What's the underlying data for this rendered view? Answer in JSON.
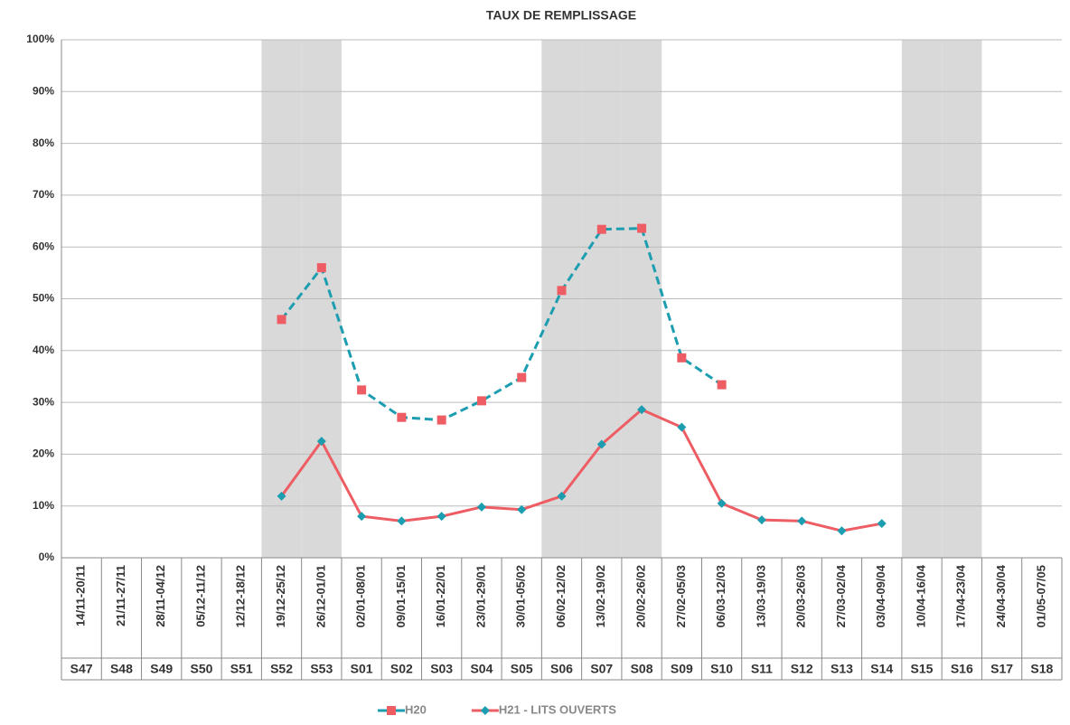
{
  "chart_data": {
    "type": "line",
    "title": "TAUX DE REMPLISSAGE",
    "categories": [
      "S47",
      "S48",
      "S49",
      "S50",
      "S51",
      "S52",
      "S53",
      "S01",
      "S02",
      "S03",
      "S04",
      "S05",
      "S06",
      "S07",
      "S08",
      "S09",
      "S10",
      "S11",
      "S12",
      "S13",
      "S14",
      "S15",
      "S16",
      "S17",
      "S18"
    ],
    "date_ranges": [
      "14/11-20/11",
      "21/11-27/11",
      "28/11-04/12",
      "05/12-11/12",
      "12/12-18/12",
      "19/12-25/12",
      "26/12-01/01",
      "02/01-08/01",
      "09/01-15/01",
      "16/01-22/01",
      "23/01-29/01",
      "30/01-05/02",
      "06/02-12/02",
      "13/02-19/02",
      "20/02-26/02",
      "27/02-05/03",
      "06/03-12/03",
      "13/03-19/03",
      "20/03-26/03",
      "27/03-02/04",
      "03/04-09/04",
      "10/04-16/04",
      "17/04-23/04",
      "24/04-30/04",
      "01/05-07/05"
    ],
    "shaded_categories": [
      5,
      6,
      12,
      13,
      14,
      21,
      22
    ],
    "series": [
      {
        "name": "H20",
        "color": "#ee5d64",
        "line_color": "#1c9db0",
        "line_style": "dashed",
        "marker": "square",
        "values": [
          null,
          null,
          null,
          null,
          null,
          46,
          56,
          32.4,
          27.1,
          26.6,
          30.3,
          34.8,
          51.6,
          63.4,
          63.6,
          38.6,
          33.4,
          null,
          null,
          null,
          null,
          null,
          null,
          null,
          null
        ]
      },
      {
        "name": "H21 - LITS OUVERTS",
        "color": "#1c9db0",
        "line_color": "#ee5d64",
        "line_style": "solid",
        "marker": "diamond",
        "values": [
          null,
          null,
          null,
          null,
          null,
          11.9,
          22.5,
          8,
          7.1,
          8,
          9.8,
          9.3,
          11.9,
          21.9,
          28.6,
          25.2,
          10.5,
          7.3,
          7.1,
          5.2,
          6.6,
          null,
          null,
          null,
          null
        ]
      }
    ],
    "ylim": [
      0,
      100
    ],
    "yticks": [
      {
        "value": 0,
        "label": "0%"
      },
      {
        "value": 10,
        "label": "10%"
      },
      {
        "value": 20,
        "label": "20%"
      },
      {
        "value": 30,
        "label": "30%"
      },
      {
        "value": 40,
        "label": "40%"
      },
      {
        "value": 50,
        "label": "50%"
      },
      {
        "value": 60,
        "label": "60%"
      },
      {
        "value": 70,
        "label": "70%"
      },
      {
        "value": 80,
        "label": "80%"
      },
      {
        "value": 90,
        "label": "90%"
      },
      {
        "value": 100,
        "label": "100%"
      }
    ],
    "grid": true,
    "legend": "bottom"
  }
}
